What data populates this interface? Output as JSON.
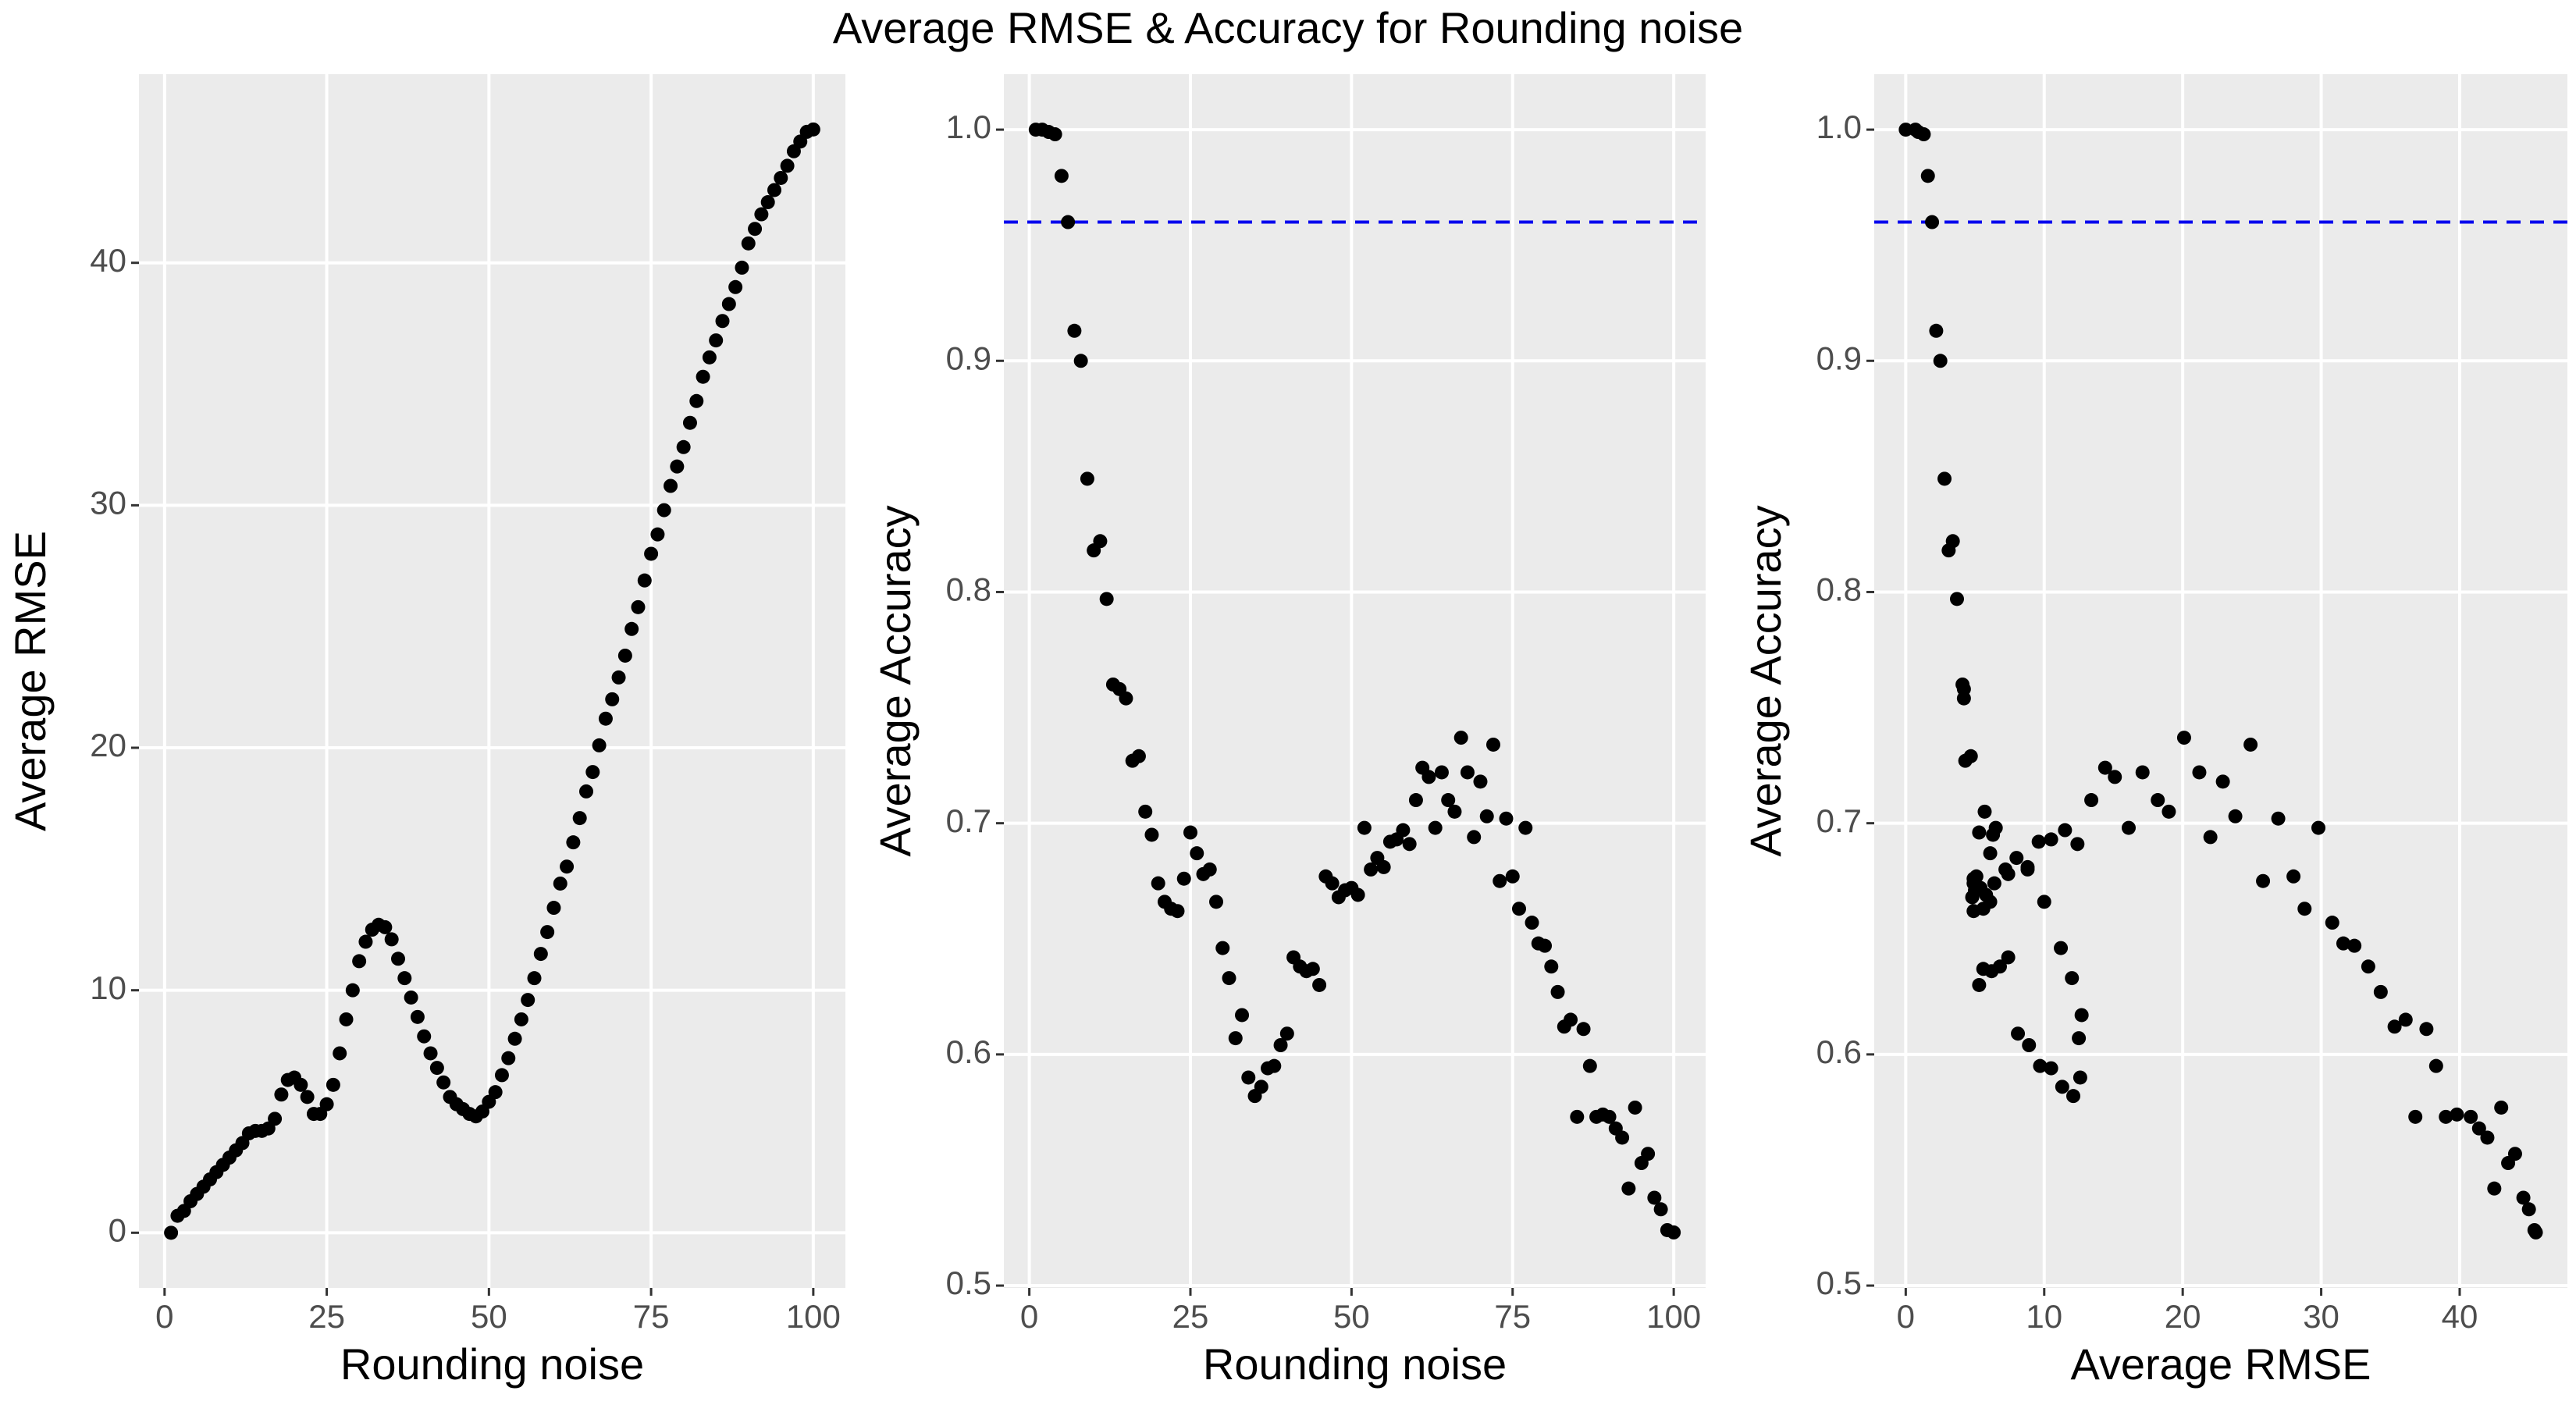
{
  "title": "Average RMSE & Accuracy for Rounding noise",
  "chart_data": [
    {
      "type": "scatter",
      "x_label": "Rounding noise",
      "y_label": "Average RMSE",
      "color": "#000000",
      "grid": true,
      "xlim": [
        -3.95,
        104.95
      ],
      "ylim": [
        -2.275,
        47.78
      ],
      "xticks": [
        0,
        25,
        50,
        75,
        100
      ],
      "yticks": [
        0,
        10,
        20,
        30,
        40
      ],
      "x": [
        1,
        2,
        3,
        4,
        5,
        6,
        7,
        8,
        9,
        10,
        11,
        12,
        13,
        14,
        15,
        16,
        17,
        18,
        19,
        20,
        21,
        22,
        23,
        24,
        25,
        26,
        27,
        28,
        29,
        30,
        31,
        32,
        33,
        34,
        35,
        36,
        37,
        38,
        39,
        40,
        41,
        42,
        43,
        44,
        45,
        46,
        47,
        48,
        49,
        50,
        51,
        52,
        53,
        54,
        55,
        56,
        57,
        58,
        59,
        60,
        61,
        62,
        63,
        64,
        65,
        66,
        67,
        68,
        69,
        70,
        71,
        72,
        73,
        74,
        75,
        76,
        77,
        78,
        79,
        80,
        81,
        82,
        83,
        84,
        85,
        86,
        87,
        88,
        89,
        90,
        91,
        92,
        93,
        94,
        95,
        96,
        97,
        98,
        99,
        100
      ],
      "values": [
        0,
        0.7,
        0.9,
        1.3,
        1.6,
        1.9,
        2.2,
        2.5,
        2.8,
        3.1,
        3.4,
        3.7,
        4.1,
        4.2,
        4.2,
        4.3,
        4.7,
        5.7,
        6.3,
        6.4,
        6.1,
        5.6,
        4.9,
        4.9,
        5.3,
        6.1,
        7.4,
        8.8,
        10.0,
        11.2,
        12.0,
        12.5,
        12.7,
        12.6,
        12.1,
        11.3,
        10.5,
        9.7,
        8.9,
        8.1,
        7.4,
        6.8,
        6.2,
        5.6,
        5.3,
        5.1,
        4.9,
        4.8,
        5.0,
        5.4,
        5.8,
        6.5,
        7.2,
        8.0,
        8.8,
        9.6,
        10.5,
        11.5,
        12.4,
        13.4,
        14.4,
        15.1,
        16.1,
        17.1,
        18.2,
        19.0,
        20.1,
        21.2,
        22.0,
        22.9,
        23.8,
        24.9,
        25.8,
        26.9,
        28.0,
        28.8,
        29.8,
        30.8,
        31.6,
        32.4,
        33.4,
        34.3,
        35.3,
        36.1,
        36.8,
        37.6,
        38.3,
        39.0,
        39.8,
        40.8,
        41.4,
        42.0,
        42.5,
        43.0,
        43.5,
        44.0,
        44.6,
        45.0,
        45.4,
        45.5
      ]
    },
    {
      "type": "scatter",
      "x_label": "Rounding noise",
      "y_label": "Average Accuracy",
      "color": "#000000",
      "grid": true,
      "hline": 0.96,
      "hline_color": "#0000ee",
      "xlim": [
        -3.95,
        104.95
      ],
      "ylim": [
        0.499,
        1.024
      ],
      "xticks": [
        0,
        25,
        50,
        75,
        100
      ],
      "yticks": [
        0.5,
        0.6,
        0.7,
        0.8,
        0.9,
        {
          "value": 1,
          "label": "1.0"
        }
      ],
      "x": [
        1,
        2,
        3,
        4,
        5,
        6,
        7,
        8,
        9,
        10,
        11,
        12,
        13,
        14,
        15,
        16,
        17,
        18,
        19,
        20,
        21,
        22,
        23,
        24,
        25,
        26,
        27,
        28,
        29,
        30,
        31,
        32,
        33,
        34,
        35,
        36,
        37,
        38,
        39,
        40,
        41,
        42,
        43,
        44,
        45,
        46,
        47,
        48,
        49,
        50,
        51,
        52,
        53,
        54,
        55,
        56,
        57,
        58,
        59,
        60,
        61,
        62,
        63,
        64,
        65,
        66,
        67,
        68,
        69,
        70,
        71,
        72,
        73,
        74,
        75,
        76,
        77,
        78,
        79,
        80,
        81,
        82,
        83,
        84,
        85,
        86,
        87,
        88,
        89,
        90,
        91,
        92,
        93,
        94,
        95,
        96,
        97,
        98,
        99,
        100
      ],
      "values": [
        1.0,
        1.0,
        0.999,
        0.998,
        0.98,
        0.96,
        0.913,
        0.9,
        0.849,
        0.818,
        0.822,
        0.797,
        0.76,
        0.758,
        0.754,
        0.727,
        0.729,
        0.705,
        0.695,
        0.674,
        0.666,
        0.663,
        0.662,
        0.676,
        0.696,
        0.687,
        0.678,
        0.68,
        0.666,
        0.646,
        0.633,
        0.607,
        0.617,
        0.59,
        0.582,
        0.586,
        0.594,
        0.595,
        0.604,
        0.609,
        0.642,
        0.638,
        0.636,
        0.637,
        0.63,
        0.677,
        0.674,
        0.668,
        0.671,
        0.672,
        0.669,
        0.698,
        0.68,
        0.685,
        0.681,
        0.692,
        0.693,
        0.697,
        0.691,
        0.71,
        0.724,
        0.72,
        0.698,
        0.722,
        0.71,
        0.705,
        0.737,
        0.722,
        0.694,
        0.718,
        0.703,
        0.734,
        0.675,
        0.702,
        0.677,
        0.663,
        0.698,
        0.657,
        0.648,
        0.647,
        0.638,
        0.627,
        0.612,
        0.615,
        0.573,
        0.611,
        0.595,
        0.573,
        0.574,
        0.573,
        0.568,
        0.564,
        0.542,
        0.577,
        0.553,
        0.557,
        0.538,
        0.533,
        0.524,
        0.523
      ]
    },
    {
      "type": "scatter",
      "x_label": "Average RMSE",
      "y_label": "Average Accuracy",
      "color": "#000000",
      "grid": true,
      "hline": 0.96,
      "hline_color": "#0000ee",
      "xlim": [
        -2.275,
        47.78
      ],
      "ylim": [
        0.499,
        1.024
      ],
      "xticks": [
        0,
        10,
        20,
        30,
        40
      ],
      "yticks": [
        0.5,
        0.6,
        0.7,
        0.8,
        0.9,
        {
          "value": 1,
          "label": "1.0"
        }
      ],
      "x": [
        0,
        0.7,
        0.9,
        1.3,
        1.6,
        1.9,
        2.2,
        2.5,
        2.8,
        3.1,
        3.4,
        3.7,
        4.1,
        4.2,
        4.2,
        4.3,
        4.7,
        5.7,
        6.3,
        6.4,
        6.1,
        5.6,
        4.9,
        4.9,
        5.3,
        6.1,
        7.4,
        8.8,
        10.0,
        11.2,
        12.0,
        12.5,
        12.7,
        12.6,
        12.1,
        11.3,
        10.5,
        9.7,
        8.9,
        8.1,
        7.4,
        6.8,
        6.2,
        5.6,
        5.3,
        5.1,
        4.9,
        4.8,
        5.0,
        5.4,
        5.8,
        6.5,
        7.2,
        8.0,
        8.8,
        9.6,
        10.5,
        11.5,
        12.4,
        13.4,
        14.4,
        15.1,
        16.1,
        17.1,
        18.2,
        19.0,
        20.1,
        21.2,
        22.0,
        22.9,
        23.8,
        24.9,
        25.8,
        26.9,
        28.0,
        28.8,
        29.8,
        30.8,
        31.6,
        32.4,
        33.4,
        34.3,
        35.3,
        36.1,
        36.8,
        37.6,
        38.3,
        39.0,
        39.8,
        40.8,
        41.4,
        42.0,
        42.5,
        43.0,
        43.5,
        44.0,
        44.6,
        45.0,
        45.4,
        45.5
      ],
      "values": [
        1.0,
        1.0,
        0.999,
        0.998,
        0.98,
        0.96,
        0.913,
        0.9,
        0.849,
        0.818,
        0.822,
        0.797,
        0.76,
        0.758,
        0.754,
        0.727,
        0.729,
        0.705,
        0.695,
        0.674,
        0.666,
        0.663,
        0.662,
        0.676,
        0.696,
        0.687,
        0.678,
        0.68,
        0.666,
        0.646,
        0.633,
        0.607,
        0.617,
        0.59,
        0.582,
        0.586,
        0.594,
        0.595,
        0.604,
        0.609,
        0.642,
        0.638,
        0.636,
        0.637,
        0.63,
        0.677,
        0.674,
        0.668,
        0.671,
        0.672,
        0.669,
        0.698,
        0.68,
        0.685,
        0.681,
        0.692,
        0.693,
        0.697,
        0.691,
        0.71,
        0.724,
        0.72,
        0.698,
        0.722,
        0.71,
        0.705,
        0.737,
        0.722,
        0.694,
        0.718,
        0.703,
        0.734,
        0.675,
        0.702,
        0.677,
        0.663,
        0.698,
        0.657,
        0.648,
        0.647,
        0.638,
        0.627,
        0.612,
        0.615,
        0.573,
        0.611,
        0.595,
        0.573,
        0.574,
        0.573,
        0.568,
        0.564,
        0.542,
        0.577,
        0.553,
        0.557,
        0.538,
        0.533,
        0.524,
        0.523
      ]
    }
  ]
}
